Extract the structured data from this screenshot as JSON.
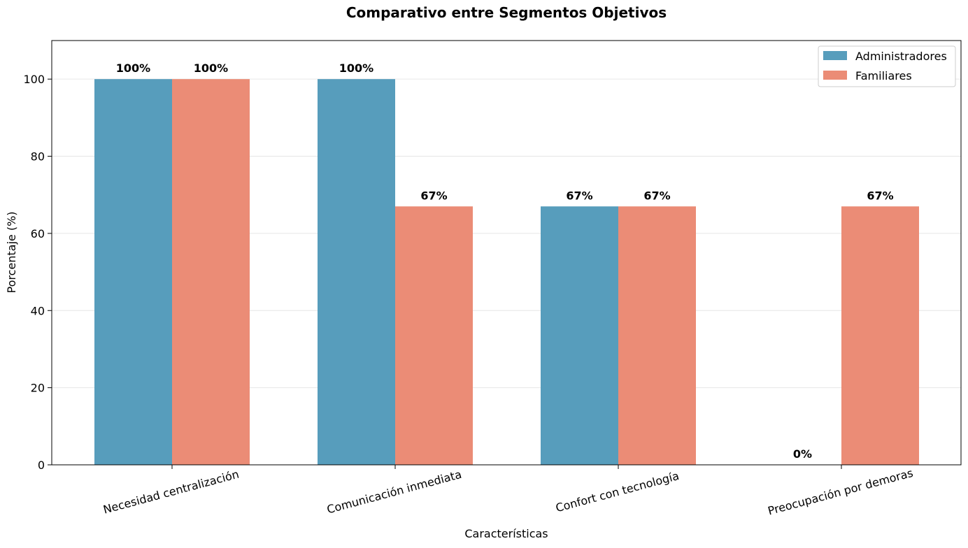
{
  "colors": {
    "administradores": "#579DBC",
    "familiares": "#EB8C76",
    "grid": "#e6e6e6",
    "axis": "#000000"
  },
  "chart_data": {
    "type": "bar",
    "title": "Comparativo entre Segmentos Objetivos",
    "xlabel": "Características",
    "ylabel": "Porcentaje (%)",
    "ylim": [
      0,
      110
    ],
    "yticks": [
      "0",
      "20",
      "40",
      "60",
      "80",
      "100"
    ],
    "grid": true,
    "legend_placement": "top-right",
    "categories": [
      "Necesidad centralización",
      "Comunicación inmediata",
      "Confort con tecnología",
      "Preocupación por demoras"
    ],
    "series": [
      {
        "name": "Administradores",
        "values": [
          100,
          100,
          67,
          0
        ],
        "labels": [
          "100%",
          "100%",
          "67%",
          "0%"
        ]
      },
      {
        "name": "Familiares",
        "values": [
          100,
          67,
          67,
          67
        ],
        "labels": [
          "100%",
          "67%",
          "67%",
          "67%"
        ]
      }
    ]
  }
}
